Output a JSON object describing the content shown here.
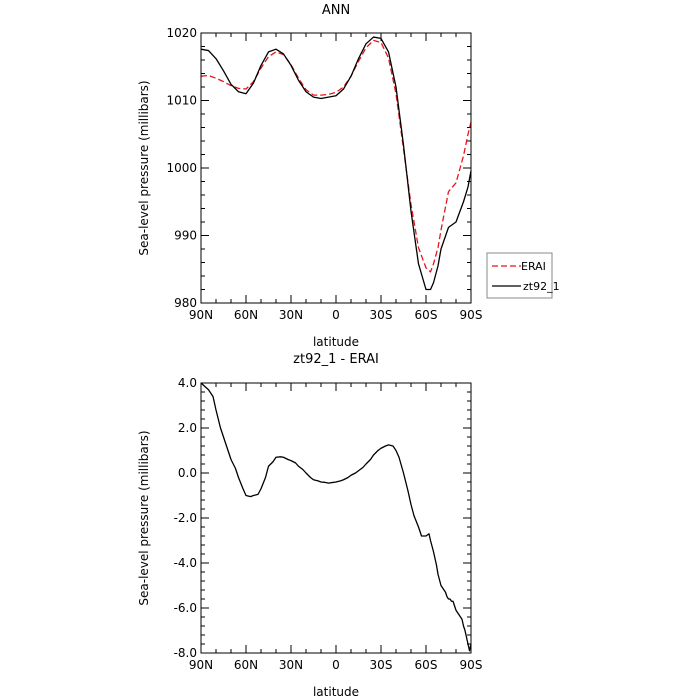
{
  "chart_data": [
    {
      "type": "line",
      "title": "ANN",
      "xlabel": "latitude",
      "ylabel": "Sea-level pressure (millibars)",
      "x_ticks": [
        {
          "value": 90,
          "label": "90N"
        },
        {
          "value": 60,
          "label": "60N"
        },
        {
          "value": 30,
          "label": "30N"
        },
        {
          "value": 0,
          "label": "0"
        },
        {
          "value": -30,
          "label": "30S"
        },
        {
          "value": -60,
          "label": "60S"
        },
        {
          "value": -90,
          "label": "90S"
        }
      ],
      "xlim": [
        90,
        -90
      ],
      "ylim": [
        980,
        1020
      ],
      "y_ticks": [
        {
          "value": 1020,
          "label": "1020"
        },
        {
          "value": 1010,
          "label": "1010"
        },
        {
          "value": 1000,
          "label": "1000"
        },
        {
          "value": 990,
          "label": "990"
        },
        {
          "value": 980,
          "label": "980"
        }
      ],
      "legend": {
        "placement": "outside-right"
      },
      "series": [
        {
          "name": "ERAI",
          "color": "#e8141c",
          "dash": "dashed",
          "x": [
            90,
            85,
            80,
            75,
            70,
            65,
            60,
            55,
            50,
            45,
            40,
            35,
            30,
            25,
            20,
            15,
            10,
            5,
            0,
            -5,
            -10,
            -15,
            -20,
            -25,
            -30,
            -35,
            -40,
            -45,
            -50,
            -55,
            -60,
            -63,
            -65,
            -68,
            -70,
            -75,
            -80,
            -85,
            -88,
            -90
          ],
          "y": [
            1013.6,
            1013.7,
            1013.3,
            1012.8,
            1012.2,
            1011.8,
            1011.7,
            1012.8,
            1014.8,
            1016.5,
            1017.2,
            1016.8,
            1015.3,
            1013.3,
            1011.6,
            1010.8,
            1010.8,
            1010.9,
            1011.2,
            1012.0,
            1013.6,
            1015.8,
            1017.8,
            1018.9,
            1018.6,
            1016.3,
            1011.0,
            1002.8,
            994.6,
            988.2,
            985.2,
            984.6,
            985.8,
            988.2,
            990.8,
            996.5,
            997.8,
            1001.8,
            1005.0,
            1006.8
          ]
        },
        {
          "name": "zt92_1",
          "color": "#000000",
          "dash": "solid",
          "x": [
            90,
            85,
            80,
            75,
            70,
            65,
            60,
            55,
            50,
            45,
            40,
            35,
            30,
            25,
            20,
            15,
            10,
            5,
            0,
            -5,
            -10,
            -15,
            -20,
            -25,
            -30,
            -35,
            -40,
            -45,
            -50,
            -55,
            -60,
            -63,
            -65,
            -68,
            -70,
            -75,
            -80,
            -85,
            -88,
            -90
          ],
          "y": [
            1017.6,
            1017.4,
            1016.2,
            1014.4,
            1012.4,
            1011.3,
            1011.0,
            1012.6,
            1015.2,
            1017.2,
            1017.6,
            1016.9,
            1015.2,
            1013.0,
            1011.3,
            1010.5,
            1010.3,
            1010.5,
            1010.7,
            1011.7,
            1013.6,
            1016.2,
            1018.4,
            1019.4,
            1019.2,
            1017.2,
            1012.0,
            1003.4,
            993.6,
            985.8,
            982.0,
            982.0,
            983.0,
            985.5,
            988.0,
            991.2,
            992.0,
            995.0,
            997.2,
            999.6
          ]
        }
      ]
    },
    {
      "type": "line",
      "title": "zt92_1 - ERAI",
      "xlabel": "latitude",
      "ylabel": "Sea-level pressure (millibars)",
      "x_ticks": [
        {
          "value": 90,
          "label": "90N"
        },
        {
          "value": 60,
          "label": "60N"
        },
        {
          "value": 30,
          "label": "30N"
        },
        {
          "value": 0,
          "label": "0"
        },
        {
          "value": -30,
          "label": "30S"
        },
        {
          "value": -60,
          "label": "60S"
        },
        {
          "value": -90,
          "label": "90S"
        }
      ],
      "xlim": [
        90,
        -90
      ],
      "ylim": [
        -8,
        4
      ],
      "y_ticks": [
        {
          "value": 4,
          "label": "4.0"
        },
        {
          "value": 2,
          "label": "2.0"
        },
        {
          "value": 0,
          "label": "0.0"
        },
        {
          "value": -2,
          "label": "-2.0"
        },
        {
          "value": -4,
          "label": "-4.0"
        },
        {
          "value": -6,
          "label": "-6.0"
        },
        {
          "value": -8,
          "label": "-8.0"
        }
      ],
      "series": [
        {
          "color": "#000000",
          "dash": "solid",
          "x": [
            90,
            85,
            82,
            80,
            77,
            75,
            72,
            70,
            67,
            65,
            62,
            60,
            57,
            55,
            52,
            50,
            47,
            45,
            42,
            40,
            37,
            35,
            32,
            30,
            27,
            25,
            22,
            20,
            17,
            15,
            12,
            10,
            7,
            5,
            2,
            0,
            -3,
            -5,
            -8,
            -10,
            -13,
            -15,
            -18,
            -20,
            -23,
            -25,
            -28,
            -30,
            -33,
            -35,
            -38,
            -40,
            -42,
            -45,
            -48,
            -50,
            -52,
            -55,
            -57,
            -60,
            -62,
            -63,
            -65,
            -66,
            -67,
            -68,
            -70,
            -72,
            -73,
            -74,
            -75,
            -76,
            -77,
            -78,
            -80,
            -82,
            -84,
            -85,
            -86,
            -87,
            -88,
            -89,
            -90
          ],
          "y": [
            4.0,
            3.7,
            3.4,
            2.8,
            2.0,
            1.6,
            1.0,
            0.6,
            0.2,
            -0.2,
            -0.7,
            -1.0,
            -1.05,
            -1.0,
            -0.95,
            -0.7,
            -0.2,
            0.3,
            0.5,
            0.7,
            0.72,
            0.7,
            0.6,
            0.55,
            0.45,
            0.3,
            0.15,
            0.0,
            -0.2,
            -0.3,
            -0.35,
            -0.4,
            -0.42,
            -0.45,
            -0.42,
            -0.4,
            -0.35,
            -0.3,
            -0.2,
            -0.1,
            0.0,
            0.1,
            0.25,
            0.4,
            0.6,
            0.8,
            1.0,
            1.1,
            1.2,
            1.25,
            1.2,
            1.0,
            0.7,
            0.0,
            -0.8,
            -1.4,
            -1.9,
            -2.4,
            -2.8,
            -2.8,
            -2.7,
            -3.0,
            -3.5,
            -3.8,
            -4.1,
            -4.5,
            -5.0,
            -5.2,
            -5.3,
            -5.5,
            -5.6,
            -5.6,
            -5.7,
            -5.7,
            -6.1,
            -6.3,
            -6.5,
            -6.8,
            -7.0,
            -7.3,
            -7.6,
            -7.9,
            -7.6
          ]
        }
      ]
    }
  ]
}
